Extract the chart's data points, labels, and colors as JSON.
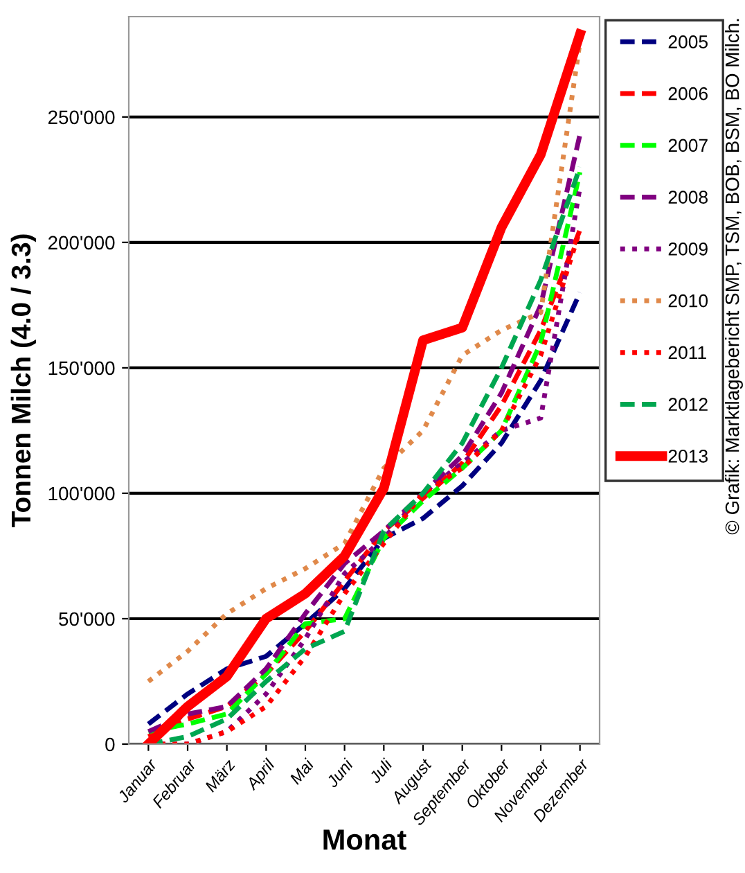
{
  "chart_data": {
    "type": "line",
    "xlabel": "Monat",
    "ylabel": "Tonnen Milch (4.0 / 3.3)",
    "categories": [
      "Januar",
      "Februar",
      "März",
      "April",
      "Mai",
      "Juni",
      "Juli",
      "August",
      "September",
      "Oktober",
      "November",
      "Dezember"
    ],
    "series": [
      {
        "name": "2005",
        "color": "#000080",
        "line_style": "dashed",
        "values": [
          8000,
          20000,
          30000,
          35000,
          48000,
          62000,
          82000,
          90000,
          103000,
          120000,
          145000,
          180000
        ]
      },
      {
        "name": "2006",
        "color": "#ff0000",
        "line_style": "dashed",
        "values": [
          3000,
          10000,
          15000,
          28000,
          45000,
          65000,
          85000,
          98000,
          112000,
          135000,
          165000,
          205000
        ]
      },
      {
        "name": "2007",
        "color": "#00ff00",
        "line_style": "dashed",
        "values": [
          5000,
          8000,
          12000,
          28000,
          48000,
          50000,
          82000,
          97000,
          110000,
          125000,
          160000,
          228000
        ]
      },
      {
        "name": "2008",
        "color": "#800080",
        "line_style": "dashed",
        "values": [
          5000,
          12000,
          15000,
          30000,
          52000,
          72000,
          85000,
          100000,
          115000,
          140000,
          175000,
          243000
        ]
      },
      {
        "name": "2009",
        "color": "#800080",
        "line_style": "dotted",
        "values": [
          0,
          0,
          5000,
          20000,
          42000,
          68000,
          82000,
          100000,
          112000,
          125000,
          130000,
          222000
        ]
      },
      {
        "name": "2010",
        "color": "#e0894a",
        "line_style": "dotted",
        "values": [
          25000,
          37000,
          52000,
          62000,
          70000,
          80000,
          110000,
          125000,
          155000,
          165000,
          172000,
          280000
        ]
      },
      {
        "name": "2011",
        "color": "#ff0000",
        "line_style": "dotted",
        "values": [
          0,
          0,
          5000,
          15000,
          35000,
          60000,
          80000,
          100000,
          110000,
          125000,
          155000,
          205000
        ]
      },
      {
        "name": "2012",
        "color": "#00a650",
        "line_style": "dashed",
        "values": [
          0,
          3000,
          10000,
          25000,
          38000,
          45000,
          85000,
          100000,
          120000,
          150000,
          185000,
          230000
        ]
      },
      {
        "name": "2013",
        "color": "#ff0000",
        "line_style": "solid",
        "values": [
          0,
          15000,
          27000,
          50000,
          60000,
          75000,
          102000,
          161000,
          166000,
          206000,
          235000,
          283000
        ]
      }
    ],
    "ylim": [
      0,
      290000
    ],
    "yticks": [
      0,
      {
        "value": 50000,
        "label": "50'000"
      },
      {
        "value": 100000,
        "label": "100'000"
      },
      {
        "value": 150000,
        "label": "150'000"
      },
      {
        "value": 200000,
        "label": "200'000"
      },
      {
        "value": 250000,
        "label": "250'000"
      }
    ],
    "grid": "y",
    "legend": "right",
    "marker": "none",
    "annotations": [
      "© Grafik: Marktlagebericht SMP, TSM, BOB, BSM, BO Milch."
    ]
  }
}
